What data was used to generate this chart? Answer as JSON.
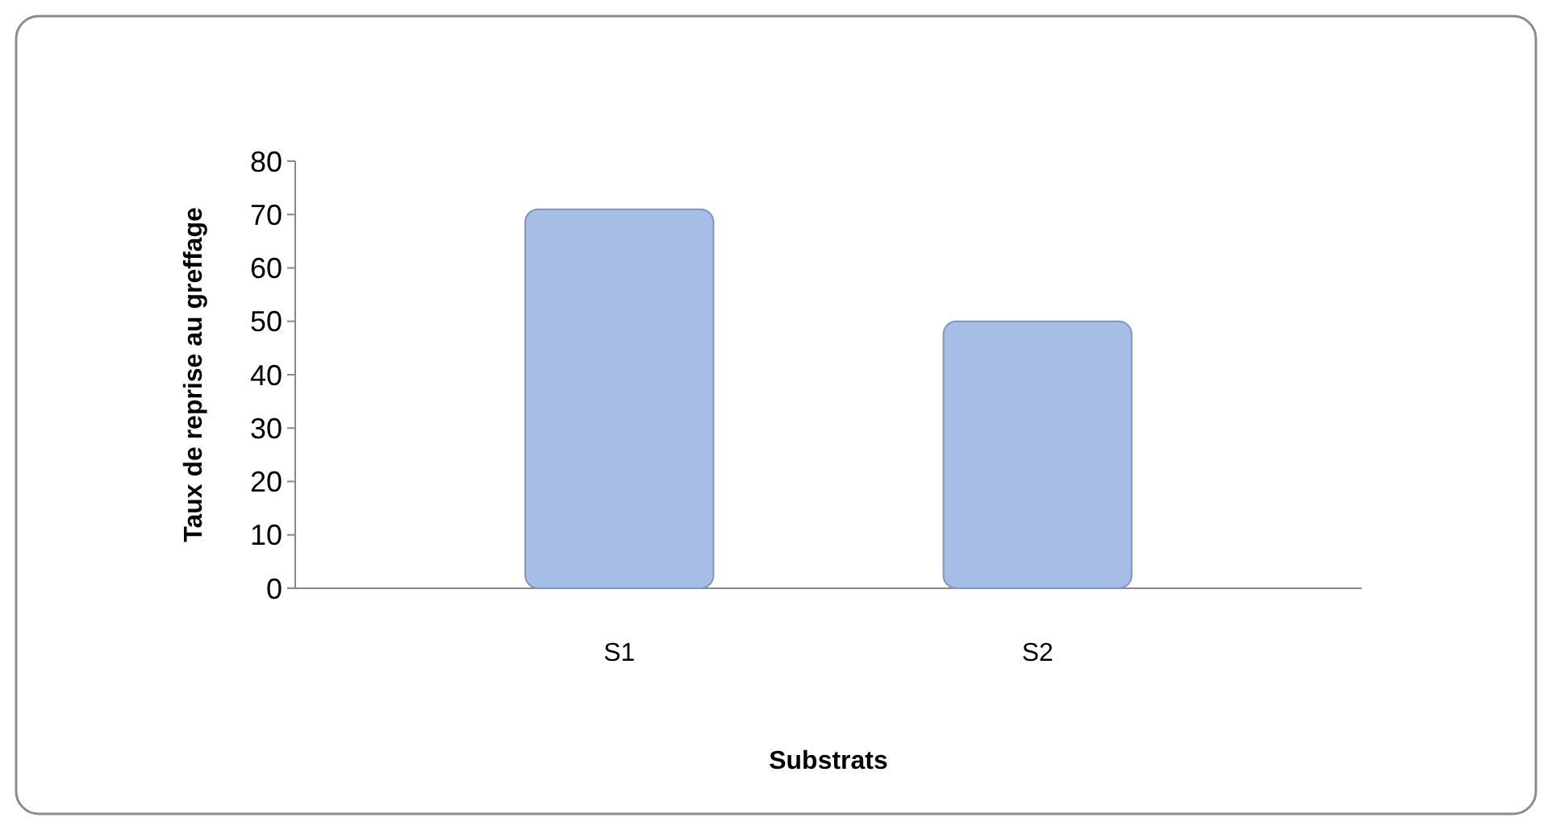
{
  "chart_data": {
    "type": "bar",
    "xlabel": "Substrats",
    "ylabel": "Taux de reprise au greffage",
    "categories": [
      "S1",
      "S2"
    ],
    "values": [
      71,
      50
    ],
    "color": "#a6bde6",
    "ylim": [
      0,
      80
    ],
    "yticks": [
      0,
      10,
      20,
      30,
      40,
      50,
      60,
      70,
      80
    ],
    "grid": false
  }
}
